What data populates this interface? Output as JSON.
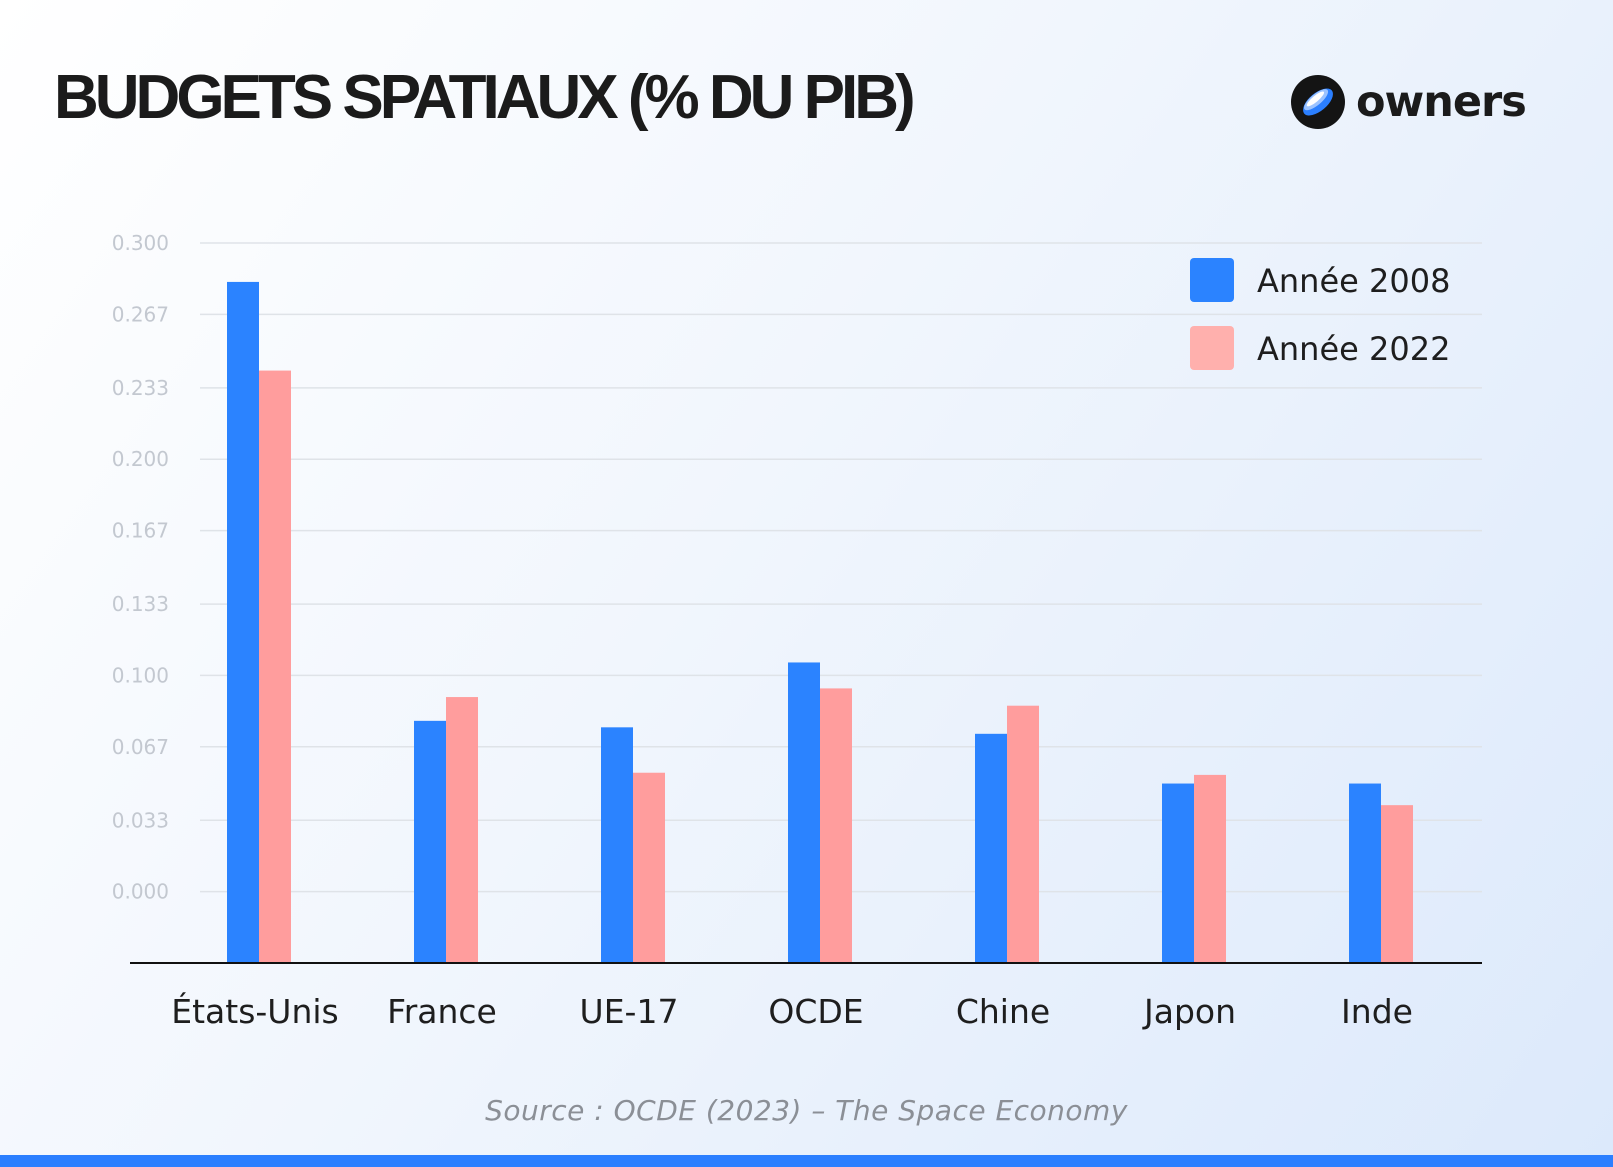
{
  "header": {
    "title": "BUDGETS SPATIAUX (% DU PIB)"
  },
  "brand": {
    "name": "owners",
    "logo_icon": "owners-logo-icon"
  },
  "chart_data": {
    "type": "bar",
    "title": "BUDGETS SPATIAUX (% DU PIB)",
    "xlabel": "",
    "ylabel": "",
    "ylim": [
      -0.033,
      0.3
    ],
    "yticks": [
      "0.300",
      "0.267",
      "0.233",
      "0.200",
      "0.167",
      "0.133",
      "0.100",
      "0.067",
      "0.033",
      "0.000"
    ],
    "categories": [
      "États-Unis",
      "France",
      "UE-17",
      "OCDE",
      "Chine",
      "Japon",
      "Inde"
    ],
    "series": [
      {
        "name": "Année 2008",
        "color": "#2b83ff",
        "values": [
          0.282,
          0.079,
          0.076,
          0.106,
          0.073,
          0.05,
          0.05
        ]
      },
      {
        "name": "Année 2022",
        "color": "#ff9d9d",
        "values": [
          0.241,
          0.09,
          0.055,
          0.094,
          0.086,
          0.054,
          0.04
        ]
      }
    ],
    "grid": true,
    "legend": "top-right"
  },
  "footer": {
    "source": "Source : OCDE (2023) – The Space Economy"
  }
}
